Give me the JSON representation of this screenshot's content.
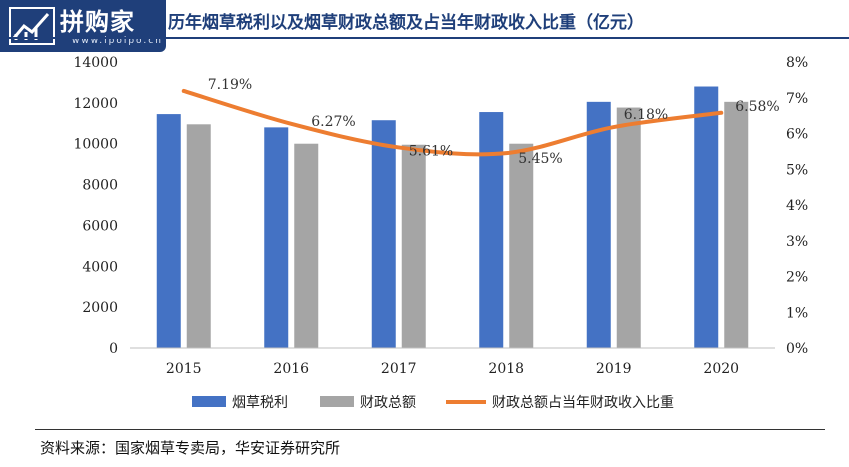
{
  "logo": {
    "text": "拼购家",
    "url": "www.ipoipo.cn",
    "icon": "chart-trend-icon"
  },
  "chart_data": {
    "type": "bar",
    "title": "历年烟草税利以及烟草财政总额及占当年财政收入比重（亿元）",
    "categories": [
      "2015",
      "2016",
      "2017",
      "2018",
      "2019",
      "2020"
    ],
    "series": [
      {
        "name": "烟草税利",
        "kind": "bar",
        "axis": "left",
        "color": "#4472c4",
        "values": [
          11450,
          10800,
          11150,
          11550,
          12050,
          12800
        ]
      },
      {
        "name": "财政总额",
        "kind": "bar",
        "axis": "left",
        "color": "#a5a5a5",
        "values": [
          10950,
          10000,
          9950,
          10000,
          11770,
          12050
        ]
      },
      {
        "name": "财政总额占当年财政收入比重",
        "kind": "line",
        "axis": "right",
        "color": "#ed7d31",
        "values": [
          7.19,
          6.27,
          5.61,
          5.45,
          6.18,
          6.58
        ],
        "labels": [
          "7.19%",
          "6.27%",
          "5.61%",
          "5.45%",
          "6.18%",
          "6.58%"
        ]
      }
    ],
    "ylim": [
      0,
      14000
    ],
    "yticks": [
      "0",
      "2000",
      "4000",
      "6000",
      "8000",
      "10000",
      "12000",
      "14000"
    ],
    "y2lim": [
      0,
      8
    ],
    "y2ticks": [
      "0%",
      "1%",
      "2%",
      "3%",
      "4%",
      "5%",
      "6%",
      "7%",
      "8%"
    ],
    "legend_position": "bottom",
    "grid": false
  },
  "source": "资料来源：国家烟草专卖局，华安证券研究所"
}
